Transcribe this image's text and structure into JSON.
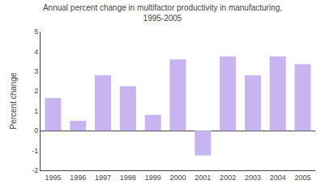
{
  "chart_data": {
    "type": "bar",
    "title": "Annual percent change in multifactor productivity in manufacturing,\n1995-2005",
    "ylabel": "Percent change",
    "categories": [
      "1995",
      "1996",
      "1997",
      "1998",
      "1999",
      "2000",
      "2001",
      "2002",
      "2003",
      "2004",
      "2005"
    ],
    "values": [
      1.65,
      0.5,
      2.8,
      2.25,
      0.8,
      3.6,
      -1.25,
      3.75,
      2.8,
      3.75,
      3.35
    ],
    "color": "#c8b4f0",
    "ylim": [
      -2,
      5
    ],
    "yticks": [
      -2,
      -1,
      0,
      1,
      2,
      3,
      4,
      5
    ],
    "grid": false
  }
}
